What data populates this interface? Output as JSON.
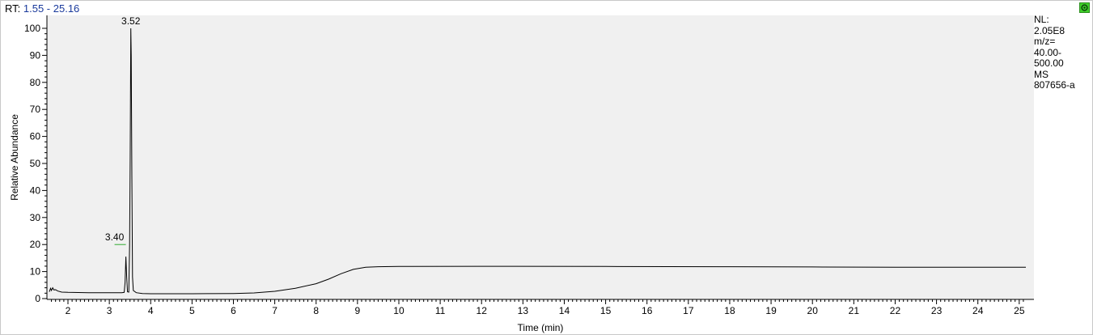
{
  "header": {
    "rt_prefix": "RT:",
    "rt_range": "1.55 - 25.16"
  },
  "info": {
    "lines": [
      "NL:",
      "2.05E8",
      "m/z=",
      "40.00-",
      "500.00",
      "MS",
      "807656-a"
    ]
  },
  "colors": {
    "trace": "#000000",
    "plot_background": "#f0f0f0",
    "range_text": "#1a3a9c",
    "peak_marker": "#2eaa2e",
    "corner_button": "#3fcf2a"
  },
  "icons": {
    "corner_button": "green-circle-icon"
  },
  "chart_data": {
    "type": "line",
    "xlabel": "Time (min)",
    "ylabel": "Relative Abundance",
    "xlim": [
      1.55,
      25.16
    ],
    "ylim": [
      0,
      100
    ],
    "x_ticks": [
      2,
      3,
      4,
      5,
      6,
      7,
      8,
      9,
      10,
      11,
      12,
      13,
      14,
      15,
      16,
      17,
      18,
      19,
      20,
      21,
      22,
      23,
      24,
      25
    ],
    "y_ticks": [
      0,
      10,
      20,
      30,
      40,
      50,
      60,
      70,
      80,
      90,
      100
    ],
    "grid": false,
    "peaks": [
      {
        "label": "3.52",
        "x": 3.52,
        "y": 100
      },
      {
        "label": "3.40",
        "x": 3.4,
        "y": 20
      }
    ],
    "series": [
      {
        "points": [
          [
            1.55,
            2.5
          ],
          [
            1.58,
            3.8
          ],
          [
            1.6,
            3.0
          ],
          [
            1.63,
            4.0
          ],
          [
            1.66,
            3.2
          ],
          [
            1.7,
            3.3
          ],
          [
            1.75,
            2.8
          ],
          [
            1.85,
            2.4
          ],
          [
            2.0,
            2.3
          ],
          [
            2.5,
            2.2
          ],
          [
            3.0,
            2.2
          ],
          [
            3.3,
            2.2
          ],
          [
            3.36,
            2.3
          ],
          [
            3.38,
            6.0
          ],
          [
            3.4,
            15.5
          ],
          [
            3.42,
            8.0
          ],
          [
            3.44,
            2.5
          ],
          [
            3.47,
            2.4
          ],
          [
            3.49,
            20.0
          ],
          [
            3.505,
            51.0
          ],
          [
            3.52,
            100.0
          ],
          [
            3.53,
            90.0
          ],
          [
            3.545,
            45.0
          ],
          [
            3.56,
            8.0
          ],
          [
            3.58,
            3.0
          ],
          [
            3.65,
            2.2
          ],
          [
            3.8,
            1.9
          ],
          [
            4.0,
            1.8
          ],
          [
            5.0,
            1.8
          ],
          [
            6.0,
            1.9
          ],
          [
            6.5,
            2.1
          ],
          [
            7.0,
            2.7
          ],
          [
            7.5,
            3.8
          ],
          [
            8.0,
            5.5
          ],
          [
            8.3,
            7.2
          ],
          [
            8.6,
            9.2
          ],
          [
            8.9,
            10.8
          ],
          [
            9.2,
            11.6
          ],
          [
            9.5,
            11.8
          ],
          [
            10.0,
            11.9
          ],
          [
            12.0,
            11.95
          ],
          [
            15.0,
            11.9
          ],
          [
            18.0,
            11.8
          ],
          [
            20.0,
            11.7
          ],
          [
            22.0,
            11.6
          ],
          [
            24.0,
            11.6
          ],
          [
            25.16,
            11.6
          ]
        ]
      }
    ]
  }
}
